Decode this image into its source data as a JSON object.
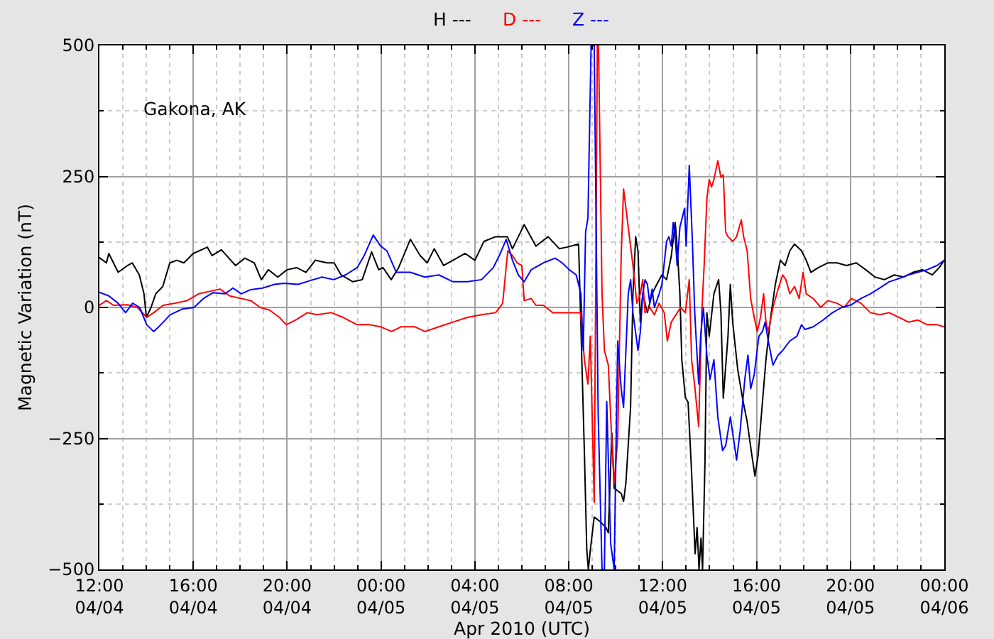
{
  "chart_data": {
    "type": "line",
    "xlabel": "Apr 2010 (UTC)",
    "ylabel": "Magnetic Variation (nT)",
    "annotations": [
      "Gakona, AK"
    ],
    "xlim": [
      "2010-04-04T12:00",
      "2010-04-06T00:00"
    ],
    "xticks": [
      {
        "value": "2010-04-04T12:00",
        "label": "12:00\n04/04"
      },
      {
        "value": "2010-04-04T13:00",
        "label": null
      },
      {
        "value": "2010-04-04T14:00",
        "label": null
      },
      {
        "value": "2010-04-04T15:00",
        "label": null
      },
      {
        "value": "2010-04-04T16:00",
        "label": "16:00\n04/04"
      },
      {
        "value": "2010-04-04T17:00",
        "label": null
      },
      {
        "value": "2010-04-04T18:00",
        "label": null
      },
      {
        "value": "2010-04-04T19:00",
        "label": null
      },
      {
        "value": "2010-04-04T20:00",
        "label": "20:00\n04/04"
      },
      {
        "value": "2010-04-04T21:00",
        "label": null
      },
      {
        "value": "2010-04-04T22:00",
        "label": null
      },
      {
        "value": "2010-04-04T23:00",
        "label": null
      },
      {
        "value": "2010-04-05T00:00",
        "label": "00:00\n04/05"
      },
      {
        "value": "2010-04-05T01:00",
        "label": null
      },
      {
        "value": "2010-04-05T02:00",
        "label": null
      },
      {
        "value": "2010-04-05T03:00",
        "label": null
      },
      {
        "value": "2010-04-05T04:00",
        "label": "04:00\n04/05"
      },
      {
        "value": "2010-04-05T05:00",
        "label": null
      },
      {
        "value": "2010-04-05T06:00",
        "label": null
      },
      {
        "value": "2010-04-05T07:00",
        "label": null
      },
      {
        "value": "2010-04-05T08:00",
        "label": "08:00\n04/05"
      },
      {
        "value": "2010-04-05T09:00",
        "label": null
      },
      {
        "value": "2010-04-05T10:00",
        "label": null
      },
      {
        "value": "2010-04-05T11:00",
        "label": null
      },
      {
        "value": "2010-04-05T12:00",
        "label": "12:00\n04/05"
      },
      {
        "value": "2010-04-05T13:00",
        "label": null
      },
      {
        "value": "2010-04-05T14:00",
        "label": null
      },
      {
        "value": "2010-04-05T15:00",
        "label": null
      },
      {
        "value": "2010-04-05T16:00",
        "label": "16:00\n04/05"
      },
      {
        "value": "2010-04-05T17:00",
        "label": null
      },
      {
        "value": "2010-04-05T18:00",
        "label": null
      },
      {
        "value": "2010-04-05T19:00",
        "label": null
      },
      {
        "value": "2010-04-05T20:00",
        "label": "20:00\n04/05"
      },
      {
        "value": "2010-04-05T21:00",
        "label": null
      },
      {
        "value": "2010-04-05T22:00",
        "label": null
      },
      {
        "value": "2010-04-05T23:00",
        "label": null
      },
      {
        "value": "2010-04-06T00:00",
        "label": "00:00\n04/06"
      }
    ],
    "ylim": [
      -500,
      500
    ],
    "yticks": [
      {
        "value": -500,
        "label": "−500"
      },
      {
        "value": -375,
        "label": null
      },
      {
        "value": -250,
        "label": "−250"
      },
      {
        "value": -125,
        "label": null
      },
      0,
      {
        "value": 125,
        "label": null
      },
      250,
      {
        "value": 375,
        "label": null
      },
      500
    ],
    "grid": true,
    "legend": "top",
    "series": [
      {
        "name": "H ---",
        "color": "#000000",
        "x": [
          "2010-04-04T12:00",
          "2010-04-04T12:18",
          "2010-04-04T12:24",
          "2010-04-04T12:48",
          "2010-04-04T13:12",
          "2010-04-04T13:24",
          "2010-04-04T13:42",
          "2010-04-04T13:54",
          "2010-04-04T14:00",
          "2010-04-04T14:12",
          "2010-04-04T14:24",
          "2010-04-04T14:42",
          "2010-04-04T15:00",
          "2010-04-04T15:18",
          "2010-04-04T15:36",
          "2010-04-04T16:00",
          "2010-04-04T16:36",
          "2010-04-04T16:48",
          "2010-04-04T17:12",
          "2010-04-04T17:36",
          "2010-04-04T17:48",
          "2010-04-04T18:12",
          "2010-04-04T18:36",
          "2010-04-04T18:54",
          "2010-04-04T19:12",
          "2010-04-04T19:36",
          "2010-04-04T20:00",
          "2010-04-04T20:24",
          "2010-04-04T20:48",
          "2010-04-04T21:12",
          "2010-04-04T21:42",
          "2010-04-04T22:00",
          "2010-04-04T22:18",
          "2010-04-04T22:48",
          "2010-04-04T23:12",
          "2010-04-04T23:36",
          "2010-04-04T23:54",
          "2010-04-05T00:05",
          "2010-04-05T00:26",
          "2010-04-05T00:45",
          "2010-04-05T01:15",
          "2010-04-05T01:40",
          "2010-04-05T01:58",
          "2010-04-05T02:16",
          "2010-04-05T02:40",
          "2010-04-05T03:04",
          "2010-04-05T03:35",
          "2010-04-05T04:00",
          "2010-04-05T04:23",
          "2010-04-05T04:53",
          "2010-04-05T05:23",
          "2010-04-05T05:36",
          "2010-04-05T06:06",
          "2010-04-05T06:36",
          "2010-04-05T07:07",
          "2010-04-05T07:36",
          "2010-04-05T07:55",
          "2010-04-05T08:25",
          "2010-04-05T08:30",
          "2010-04-05T08:40",
          "2010-04-05T08:46",
          "2010-04-05T08:50",
          "2010-04-05T08:55",
          "2010-04-05T09:05",
          "2010-04-05T09:19",
          "2010-04-05T09:35",
          "2010-04-05T09:41",
          "2010-04-05T09:50",
          "2010-04-05T09:56",
          "2010-04-05T10:14",
          "2010-04-05T10:20",
          "2010-04-05T10:26",
          "2010-04-05T10:38",
          "2010-04-05T10:44",
          "2010-04-05T10:51",
          "2010-04-05T10:57",
          "2010-04-05T11:03",
          "2010-04-05T11:09",
          "2010-04-05T11:21",
          "2010-04-05T11:33",
          "2010-04-05T11:45",
          "2010-04-05T11:58",
          "2010-04-05T12:10",
          "2010-04-05T12:22",
          "2010-04-05T12:32",
          "2010-04-05T12:37",
          "2010-04-05T12:44",
          "2010-04-05T12:49",
          "2010-04-05T12:58",
          "2010-04-05T13:05",
          "2010-04-05T13:13",
          "2010-04-05T13:23",
          "2010-04-05T13:28",
          "2010-04-05T13:33",
          "2010-04-05T13:38",
          "2010-04-05T13:42",
          "2010-04-05T13:48",
          "2010-04-05T13:53",
          "2010-04-05T13:59",
          "2010-04-05T14:11",
          "2010-04-05T14:23",
          "2010-04-05T14:29",
          "2010-04-05T14:35",
          "2010-04-05T14:47",
          "2010-04-05T14:53",
          "2010-04-05T14:59",
          "2010-04-05T15:12",
          "2010-04-05T15:24",
          "2010-04-05T15:36",
          "2010-04-05T15:48",
          "2010-04-05T15:56",
          "2010-04-05T16:04",
          "2010-04-05T16:12",
          "2010-04-05T16:24",
          "2010-04-05T16:36",
          "2010-04-05T16:48",
          "2010-04-05T17:01",
          "2010-04-05T17:13",
          "2010-04-05T17:25",
          "2010-04-05T17:37",
          "2010-04-05T17:55",
          "2010-04-05T18:07",
          "2010-04-05T18:19",
          "2010-04-05T18:38",
          "2010-04-05T19:02",
          "2010-04-05T19:26",
          "2010-04-05T19:50",
          "2010-04-05T20:15",
          "2010-04-05T20:39",
          "2010-04-05T21:03",
          "2010-04-05T21:27",
          "2010-04-05T21:52",
          "2010-04-05T22:16",
          "2010-04-05T22:40",
          "2010-04-05T23:04",
          "2010-04-05T23:29",
          "2010-04-05T23:47",
          "2010-04-06T00:00"
        ],
        "values": [
          95,
          85,
          103,
          67,
          80,
          85,
          62,
          26,
          -19,
          0,
          26,
          40,
          85,
          90,
          85,
          103,
          115,
          99,
          110,
          90,
          80,
          94,
          85,
          53,
          72,
          58,
          72,
          76,
          67,
          90,
          85,
          85,
          62,
          49,
          53,
          106,
          72,
          76,
          53,
          76,
          130,
          99,
          85,
          112,
          80,
          90,
          103,
          90,
          126,
          135,
          135,
          112,
          158,
          117,
          135,
          112,
          115,
          121,
          -10,
          -280,
          -463,
          -500,
          -463,
          -400,
          -408,
          -420,
          -430,
          -240,
          -345,
          -355,
          -370,
          -335,
          -190,
          26,
          135,
          107,
          -28,
          26,
          -10,
          26,
          44,
          62,
          53,
          98,
          162,
          117,
          26,
          -100,
          -172,
          -181,
          -300,
          -470,
          -420,
          -500,
          -440,
          -500,
          -300,
          -10,
          -55,
          26,
          53,
          -10,
          -173,
          -55,
          44,
          -28,
          -119,
          -173,
          -218,
          -282,
          -322,
          -282,
          -209,
          -100,
          -19,
          44,
          90,
          80,
          108,
          121,
          108,
          90,
          67,
          76,
          85,
          85,
          80,
          85,
          72,
          58,
          53,
          62,
          58,
          67,
          72,
          62,
          76,
          90
        ]
      },
      {
        "name": "D ---",
        "color": "#ff0000",
        "x": [
          "2010-04-04T12:00",
          "2010-04-04T12:18",
          "2010-04-04T12:36",
          "2010-04-04T13:12",
          "2010-04-04T13:37",
          "2010-04-04T14:01",
          "2010-04-04T14:19",
          "2010-04-04T14:43",
          "2010-04-04T15:14",
          "2010-04-04T15:44",
          "2010-04-04T16:14",
          "2010-04-04T16:44",
          "2010-04-04T17:08",
          "2010-04-04T17:33",
          "2010-04-04T18:03",
          "2010-04-04T18:27",
          "2010-04-04T18:51",
          "2010-04-04T19:15",
          "2010-04-04T19:40",
          "2010-04-04T19:58",
          "2010-04-04T20:22",
          "2010-04-04T20:52",
          "2010-04-04T21:16",
          "2010-04-04T21:53",
          "2010-04-04T22:23",
          "2010-04-04T22:59",
          "2010-04-04T23:30",
          "2010-04-04T23:59",
          "2010-04-05T00:27",
          "2010-04-05T00:51",
          "2010-04-05T01:27",
          "2010-04-05T01:52",
          "2010-04-05T02:28",
          "2010-04-05T03:04",
          "2010-04-05T03:41",
          "2010-04-05T04:17",
          "2010-04-05T04:53",
          "2010-04-05T05:11",
          "2010-04-05T05:18",
          "2010-04-05T05:24",
          "2010-04-05T05:36",
          "2010-04-05T05:48",
          "2010-04-05T06:00",
          "2010-04-05T06:06",
          "2010-04-05T06:24",
          "2010-04-05T06:36",
          "2010-04-05T06:55",
          "2010-04-05T07:19",
          "2010-04-05T07:55",
          "2010-04-05T08:25",
          "2010-04-05T08:30",
          "2010-04-05T08:40",
          "2010-04-05T08:49",
          "2010-04-05T08:55",
          "2010-04-05T09:05",
          "2010-04-05T09:13",
          "2010-04-05T09:16",
          "2010-04-05T09:25",
          "2010-04-05T09:31",
          "2010-04-05T09:41",
          "2010-04-05T09:50",
          "2010-04-05T09:56",
          "2010-04-05T10:05",
          "2010-04-05T10:14",
          "2010-04-05T10:20",
          "2010-04-05T10:32",
          "2010-04-05T10:44",
          "2010-04-05T10:54",
          "2010-04-05T11:03",
          "2010-04-05T11:09",
          "2010-04-05T11:15",
          "2010-04-05T11:27",
          "2010-04-05T11:39",
          "2010-04-05T11:51",
          "2010-04-05T12:04",
          "2010-04-05T12:12",
          "2010-04-05T12:22",
          "2010-04-05T12:34",
          "2010-04-05T12:46",
          "2010-04-05T12:58",
          "2010-04-05T13:08",
          "2010-04-05T13:14",
          "2010-04-05T13:22",
          "2010-04-05T13:32",
          "2010-04-05T13:40",
          "2010-04-05T13:46",
          "2010-04-05T13:53",
          "2010-04-05T13:59",
          "2010-04-05T14:05",
          "2010-04-05T14:11",
          "2010-04-05T14:21",
          "2010-04-05T14:29",
          "2010-04-05T14:35",
          "2010-04-05T14:41",
          "2010-04-05T14:47",
          "2010-04-05T14:59",
          "2010-04-05T15:09",
          "2010-04-05T15:21",
          "2010-04-05T15:27",
          "2010-04-05T15:36",
          "2010-04-05T15:45",
          "2010-04-05T15:54",
          "2010-04-05T16:02",
          "2010-04-05T16:10",
          "2010-04-05T16:18",
          "2010-04-05T16:24",
          "2010-04-05T16:30",
          "2010-04-05T16:42",
          "2010-04-05T16:55",
          "2010-04-05T17:07",
          "2010-04-05T17:15",
          "2010-04-05T17:25",
          "2010-04-05T17:37",
          "2010-04-05T17:49",
          "2010-04-05T17:59",
          "2010-04-05T18:07",
          "2010-04-05T18:25",
          "2010-04-05T18:44",
          "2010-04-05T19:02",
          "2010-04-05T19:26",
          "2010-04-05T19:44",
          "2010-04-05T20:02",
          "2010-04-05T20:27",
          "2010-04-05T20:51",
          "2010-04-05T21:15",
          "2010-04-05T21:39",
          "2010-04-05T22:04",
          "2010-04-05T22:28",
          "2010-04-05T22:52",
          "2010-04-05T23:16",
          "2010-04-05T23:41",
          "2010-04-06T00:00"
        ],
        "values": [
          4,
          13,
          4,
          5,
          0,
          -19,
          -10,
          4,
          8,
          13,
          26,
          31,
          35,
          22,
          17,
          13,
          0,
          -5,
          -19,
          -33,
          -24,
          -10,
          -14,
          -10,
          -19,
          -33,
          -33,
          -37,
          -46,
          -37,
          -37,
          -46,
          -37,
          -28,
          -19,
          -14,
          -10,
          8,
          62,
          108,
          99,
          85,
          80,
          13,
          17,
          4,
          4,
          -10,
          -10,
          -10,
          -10,
          -100,
          -146,
          -55,
          -372,
          500,
          500,
          26,
          -82,
          -110,
          -255,
          -335,
          -250,
          100,
          226,
          153,
          80,
          8,
          26,
          53,
          -10,
          0,
          -14,
          8,
          -10,
          -64,
          -28,
          -14,
          0,
          -10,
          53,
          -100,
          -150,
          -227,
          -10,
          80,
          207,
          244,
          230,
          244,
          280,
          248,
          253,
          144,
          135,
          126,
          135,
          167,
          135,
          108,
          17,
          -19,
          -46,
          -19,
          26,
          -28,
          -46,
          0,
          35,
          62,
          53,
          26,
          40,
          17,
          67,
          26,
          17,
          0,
          13,
          8,
          0,
          17,
          8,
          -10,
          -14,
          -10,
          -19,
          -28,
          -24,
          -33,
          -33,
          -37
        ]
      },
      {
        "name": "Z ---",
        "color": "#0000ff",
        "x": [
          "2010-04-04T12:00",
          "2010-04-04T12:24",
          "2010-04-04T12:48",
          "2010-04-04T13:07",
          "2010-04-04T13:25",
          "2010-04-04T13:43",
          "2010-04-04T14:01",
          "2010-04-04T14:19",
          "2010-04-04T14:37",
          "2010-04-04T15:01",
          "2010-04-04T15:32",
          "2010-04-04T16:02",
          "2010-04-04T16:26",
          "2010-04-04T16:50",
          "2010-04-04T17:21",
          "2010-04-04T17:41",
          "2010-04-04T18:03",
          "2010-04-04T18:27",
          "2010-04-04T18:57",
          "2010-04-04T19:28",
          "2010-04-04T19:52",
          "2010-04-04T20:28",
          "2010-04-04T20:58",
          "2010-04-04T21:29",
          "2010-04-04T21:59",
          "2010-04-04T22:29",
          "2010-04-04T22:59",
          "2010-04-04T23:17",
          "2010-04-04T23:40",
          "2010-04-04T23:59",
          "2010-04-05T00:15",
          "2010-04-05T00:39",
          "2010-04-05T01:15",
          "2010-04-05T01:52",
          "2010-04-05T02:28",
          "2010-04-05T03:04",
          "2010-04-05T03:41",
          "2010-04-05T04:17",
          "2010-04-05T04:47",
          "2010-04-05T05:05",
          "2010-04-05T05:20",
          "2010-04-05T05:36",
          "2010-04-05T05:51",
          "2010-04-05T06:06",
          "2010-04-05T06:24",
          "2010-04-05T06:55",
          "2010-04-05T07:25",
          "2010-04-05T07:43",
          "2010-04-05T08:01",
          "2010-04-05T08:19",
          "2010-04-05T08:31",
          "2010-04-05T08:37",
          "2010-04-05T08:43",
          "2010-04-05T08:49",
          "2010-04-05T08:57",
          "2010-04-05T09:05",
          "2010-04-05T09:15",
          "2010-04-05T09:25",
          "2010-04-05T09:31",
          "2010-04-05T09:37",
          "2010-04-05T09:47",
          "2010-04-05T09:56",
          "2010-04-05T10:05",
          "2010-04-05T10:14",
          "2010-04-05T10:20",
          "2010-04-05T10:32",
          "2010-04-05T10:38",
          "2010-04-05T10:44",
          "2010-04-05T10:57",
          "2010-04-05T11:03",
          "2010-04-05T11:09",
          "2010-04-05T11:15",
          "2010-04-05T11:21",
          "2010-04-05T11:27",
          "2010-04-05T11:33",
          "2010-04-05T11:39",
          "2010-04-05T11:51",
          "2010-04-05T11:58",
          "2010-04-05T12:10",
          "2010-04-05T12:16",
          "2010-04-05T12:22",
          "2010-04-05T12:27",
          "2010-04-05T12:32",
          "2010-04-05T12:37",
          "2010-04-05T12:44",
          "2010-04-05T12:56",
          "2010-04-05T13:00",
          "2010-04-05T13:08",
          "2010-04-05T13:16",
          "2010-04-05T13:22",
          "2010-04-05T13:32",
          "2010-04-05T13:37",
          "2010-04-05T13:44",
          "2010-04-05T13:53",
          "2010-04-05T14:01",
          "2010-04-05T14:11",
          "2010-04-05T14:21",
          "2010-04-05T14:33",
          "2010-04-05T14:41",
          "2010-04-05T14:53",
          "2010-04-05T15:09",
          "2010-04-05T15:18",
          "2010-04-05T15:30",
          "2010-04-05T15:38",
          "2010-04-05T15:45",
          "2010-04-05T15:54",
          "2010-04-05T16:06",
          "2010-04-05T16:15",
          "2010-04-05T16:22",
          "2010-04-05T16:30",
          "2010-04-05T16:42",
          "2010-04-05T16:55",
          "2010-04-05T17:07",
          "2010-04-05T17:25",
          "2010-04-05T17:43",
          "2010-04-05T17:55",
          "2010-04-05T18:04",
          "2010-04-05T18:25",
          "2010-04-05T18:50",
          "2010-04-05T19:14",
          "2010-04-05T19:38",
          "2010-04-05T20:02",
          "2010-04-05T20:27",
          "2010-04-05T20:51",
          "2010-04-05T21:15",
          "2010-04-05T21:39",
          "2010-04-05T22:04",
          "2010-04-05T22:28",
          "2010-04-05T22:52",
          "2010-04-05T23:16",
          "2010-04-05T23:41",
          "2010-04-06T00:00"
        ],
        "values": [
          29,
          22,
          8,
          -10,
          8,
          0,
          -33,
          -46,
          -33,
          -14,
          -3,
          0,
          17,
          28,
          26,
          37,
          26,
          34,
          37,
          44,
          46,
          44,
          51,
          58,
          53,
          62,
          76,
          99,
          138,
          117,
          108,
          67,
          67,
          58,
          62,
          49,
          49,
          53,
          76,
          103,
          130,
          90,
          62,
          49,
          72,
          85,
          94,
          85,
          72,
          62,
          26,
          -82,
          144,
          171,
          500,
          500,
          -200,
          -500,
          -500,
          -180,
          -450,
          -500,
          -64,
          -155,
          -191,
          26,
          53,
          -10,
          -82,
          -46,
          26,
          53,
          44,
          8,
          35,
          0,
          26,
          44,
          126,
          135,
          117,
          162,
          135,
          80,
          153,
          189,
          117,
          271,
          126,
          -10,
          -146,
          -55,
          0,
          -91,
          -137,
          -100,
          -209,
          -273,
          -264,
          -209,
          -291,
          -236,
          -137,
          -91,
          -155,
          -128,
          -55,
          -46,
          -28,
          -64,
          -110,
          -91,
          -82,
          -64,
          -55,
          -33,
          -42,
          -37,
          -24,
          -10,
          0,
          5,
          17,
          26,
          37,
          49,
          55,
          62,
          67,
          72,
          80,
          90
        ]
      }
    ]
  }
}
